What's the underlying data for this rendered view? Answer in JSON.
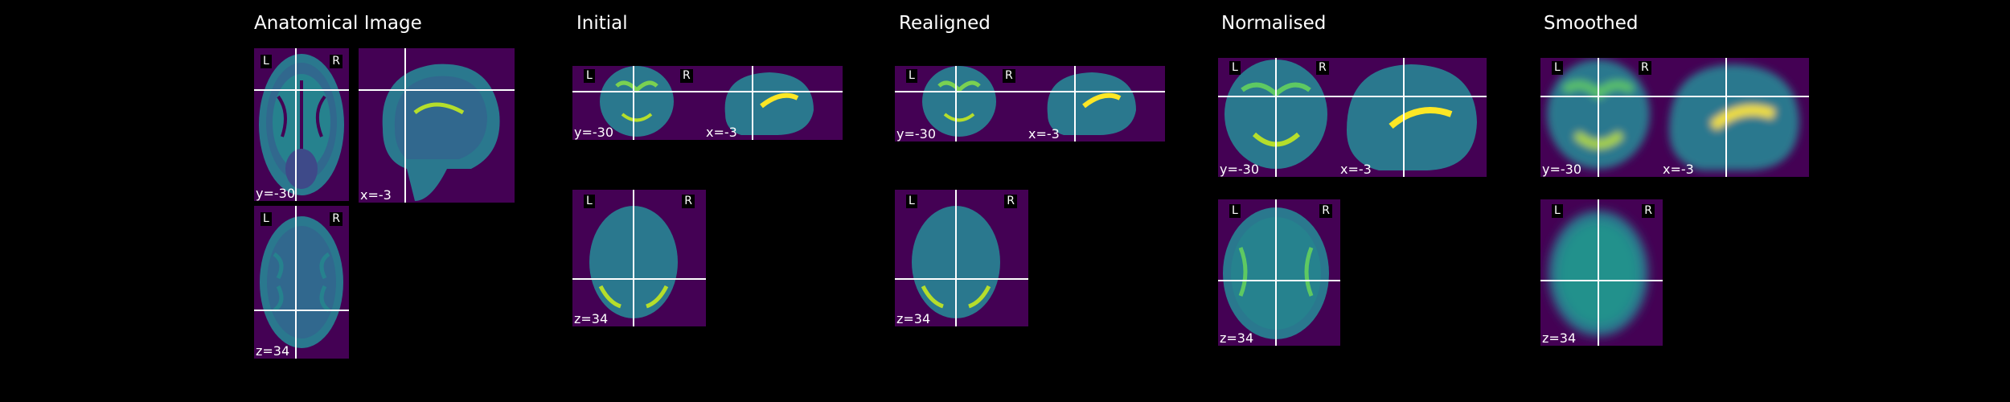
{
  "columns": [
    {
      "id": "anatomical",
      "title": "Anatomical Image"
    },
    {
      "id": "initial",
      "title": "Initial"
    },
    {
      "id": "realigned",
      "title": "Realigned"
    },
    {
      "id": "normalised",
      "title": "Normalised"
    },
    {
      "id": "smoothed",
      "title": "Smoothed"
    }
  ],
  "orientation": {
    "left": "L",
    "right": "R"
  },
  "coords": {
    "coronal": "y=-30",
    "sagittal": "x=-3",
    "axial": "z=34"
  },
  "colors": {
    "background": "#000000",
    "map_low": "#440154",
    "map_mid": "#21918c",
    "map_high": "#fde725",
    "crosshair": "#ffffff"
  }
}
